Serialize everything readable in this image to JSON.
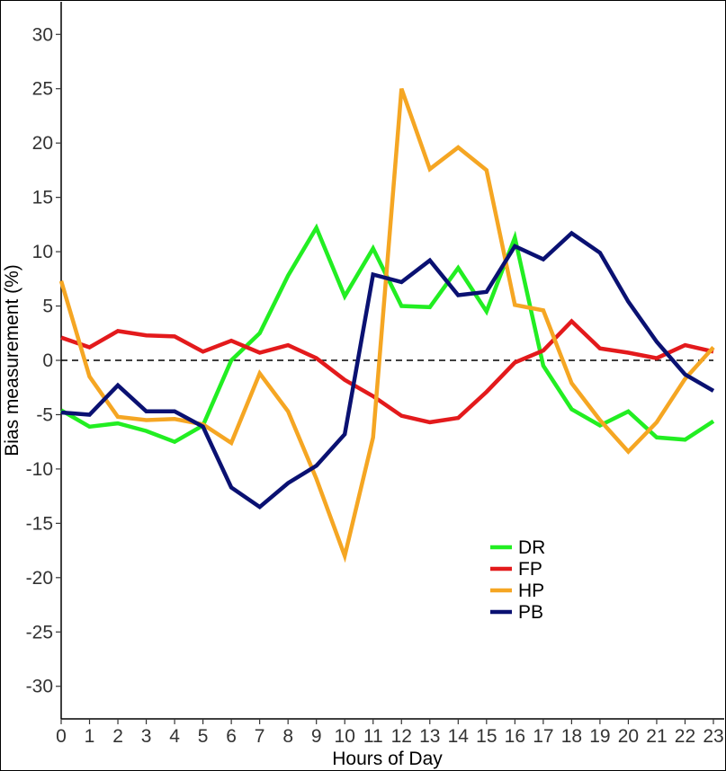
{
  "chart_data": {
    "type": "line",
    "xlabel": "Hours of Day",
    "ylabel": "Bias measurement (%)",
    "x": [
      0,
      1,
      2,
      3,
      4,
      5,
      6,
      7,
      8,
      9,
      10,
      11,
      12,
      13,
      14,
      15,
      16,
      17,
      18,
      19,
      20,
      21,
      22,
      23
    ],
    "xlim": [
      0,
      23
    ],
    "ylim": [
      -33,
      33
    ],
    "yticks": [
      -30,
      -25,
      -20,
      -15,
      -10,
      -5,
      0,
      5,
      10,
      15,
      20,
      25,
      30
    ],
    "grid": false,
    "legend_position": "bottom-center",
    "reference_line": {
      "y": 0,
      "style": "dashed",
      "color": "#000000"
    },
    "series": [
      {
        "name": "DR",
        "color": "#22ee22",
        "values": [
          -4.6,
          -6.1,
          -5.8,
          -6.5,
          -7.5,
          -6.0,
          0.0,
          2.5,
          7.8,
          12.2,
          5.9,
          10.3,
          5.0,
          4.9,
          8.5,
          4.5,
          11.3,
          -0.5,
          -4.5,
          -6.0,
          -4.7,
          -7.1,
          -7.3,
          -5.6
        ]
      },
      {
        "name": "FP",
        "color": "#e31a1c",
        "values": [
          2.1,
          1.2,
          2.7,
          2.3,
          2.2,
          0.8,
          1.8,
          0.7,
          1.4,
          0.2,
          -1.8,
          -3.3,
          -5.1,
          -5.7,
          -5.3,
          -2.9,
          -0.2,
          0.9,
          3.6,
          1.1,
          0.7,
          0.2,
          1.4,
          0.8
        ]
      },
      {
        "name": "HP",
        "color": "#f5a623",
        "values": [
          7.3,
          -1.5,
          -5.2,
          -5.5,
          -5.4,
          -5.9,
          -7.6,
          -1.2,
          -4.7,
          -10.9,
          -18.0,
          -7.1,
          25.0,
          17.6,
          19.6,
          17.5,
          5.1,
          4.6,
          -2.1,
          -5.5,
          -8.4,
          -5.7,
          -1.7,
          1.2
        ]
      },
      {
        "name": "PB",
        "color": "#0a1172",
        "values": [
          -4.8,
          -5.0,
          -2.3,
          -4.7,
          -4.7,
          -6.1,
          -11.7,
          -13.5,
          -11.3,
          -9.7,
          -6.8,
          7.9,
          7.2,
          9.2,
          6.0,
          6.3,
          10.5,
          9.3,
          11.7,
          9.9,
          5.4,
          1.7,
          -1.3,
          -2.8
        ]
      }
    ]
  }
}
